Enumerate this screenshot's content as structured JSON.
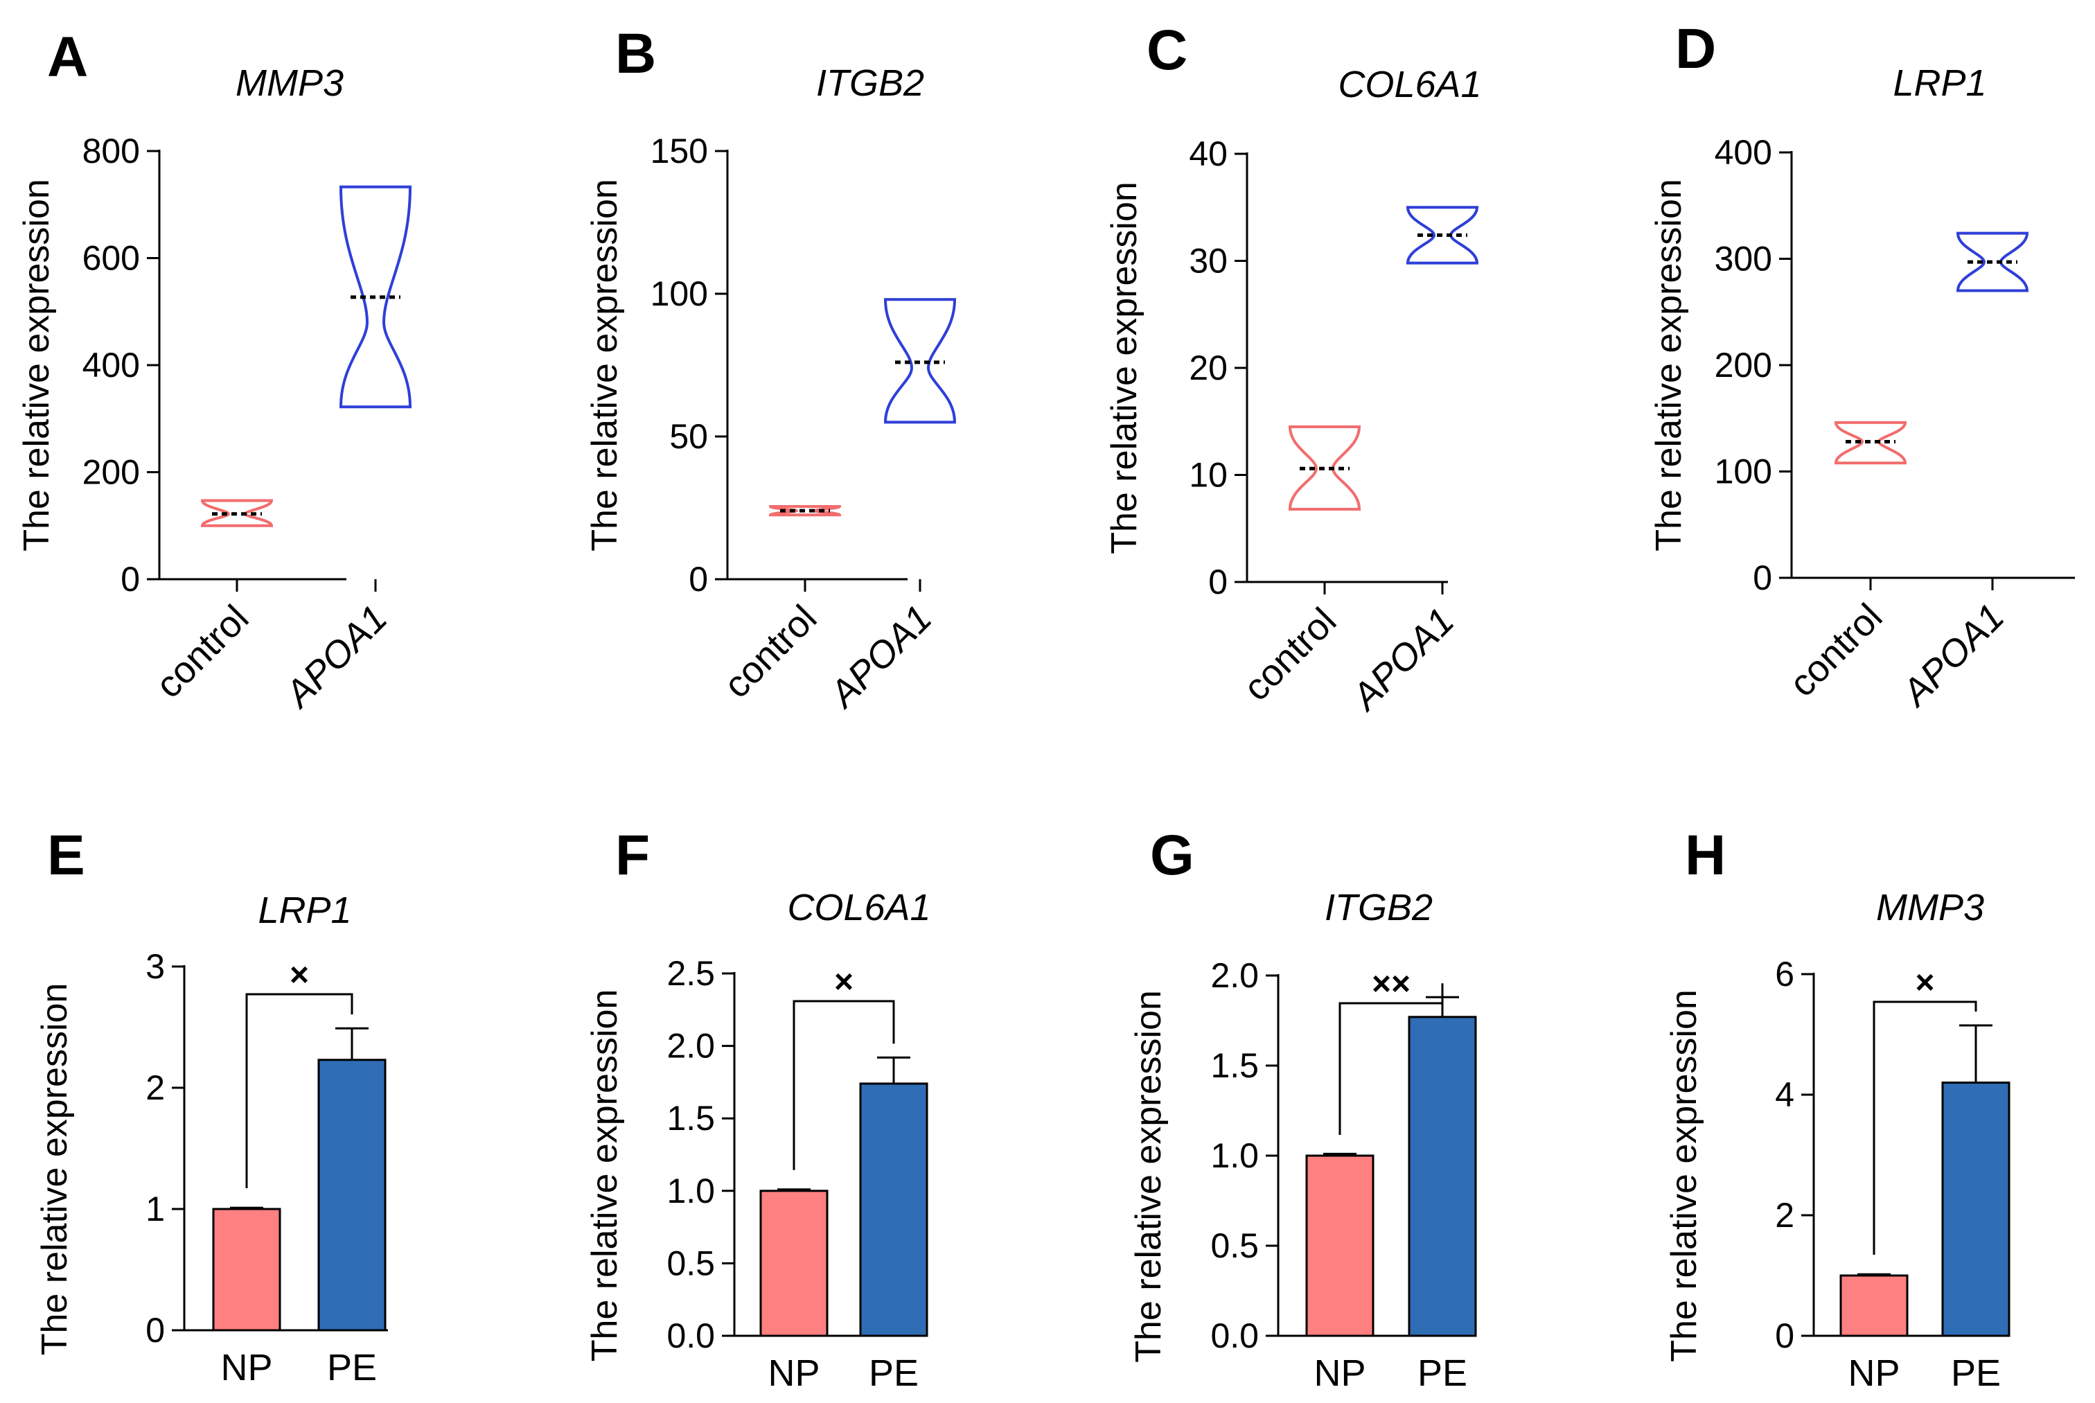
{
  "colors": {
    "control_outline": "#f26d6d",
    "control_fill": "#ffffff",
    "apoa1_outline": "#2f3fd8",
    "np_fill": "#ff8080",
    "pe_fill": "#2f6db5",
    "axis": "#000000"
  },
  "chart_data": [
    {
      "panel": "A",
      "type": "violin",
      "title": "MMP3",
      "ylabel": "The relative expression",
      "xlabel": "",
      "categories": [
        "control",
        "APOA1"
      ],
      "italic_categories": [
        false,
        true
      ],
      "ylim": [
        0,
        800
      ],
      "yticks": [
        0,
        200,
        400,
        600,
        800
      ],
      "series": [
        {
          "name": "control",
          "min": 100,
          "max": 147,
          "median": 122,
          "waist": 122
        },
        {
          "name": "APOA1",
          "min": 322,
          "max": 733,
          "median": 527,
          "waist": 480
        }
      ]
    },
    {
      "panel": "B",
      "type": "violin",
      "title": "ITGB2",
      "ylabel": "The relative expression",
      "xlabel": "",
      "categories": [
        "control",
        "APOA1"
      ],
      "italic_categories": [
        false,
        true
      ],
      "ylim": [
        0,
        150
      ],
      "yticks": [
        0,
        50,
        100,
        150
      ],
      "series": [
        {
          "name": "control",
          "min": 22.5,
          "max": 25.5,
          "median": 24,
          "waist": 24
        },
        {
          "name": "APOA1",
          "min": 55,
          "max": 98,
          "median": 76,
          "waist": 74
        }
      ]
    },
    {
      "panel": "C",
      "type": "violin",
      "title": "COL6A1",
      "ylabel": "The relative expression",
      "xlabel": "",
      "categories": [
        "control",
        "APOA1"
      ],
      "italic_categories": [
        false,
        true
      ],
      "ylim": [
        0,
        40
      ],
      "yticks": [
        0,
        10,
        20,
        30,
        40
      ],
      "series": [
        {
          "name": "control",
          "min": 6.8,
          "max": 14.5,
          "median": 10.6,
          "waist": 10.6
        },
        {
          "name": "APOA1",
          "min": 29.8,
          "max": 35,
          "median": 32.4,
          "waist": 32.4
        }
      ]
    },
    {
      "panel": "D",
      "type": "violin",
      "title": "LRP1",
      "ylabel": "The relative expression",
      "xlabel": "",
      "categories": [
        "control",
        "APOA1"
      ],
      "italic_categories": [
        false,
        true
      ],
      "ylim": [
        0,
        400
      ],
      "yticks": [
        0,
        100,
        200,
        300,
        400
      ],
      "series": [
        {
          "name": "control",
          "min": 108,
          "max": 146,
          "median": 128,
          "waist": 128
        },
        {
          "name": "APOA1",
          "min": 270,
          "max": 324,
          "median": 297,
          "waist": 297
        }
      ]
    },
    {
      "panel": "E",
      "type": "bar",
      "title": "LRP1",
      "ylabel": "The relative expression",
      "xlabel": "",
      "categories": [
        "NP",
        "PE"
      ],
      "ylim": [
        0,
        3
      ],
      "yticks": [
        "0",
        "1",
        "2",
        "3"
      ],
      "values": [
        1.0,
        2.23
      ],
      "errors": [
        0.01,
        0.26
      ],
      "significance": "×"
    },
    {
      "panel": "F",
      "type": "bar",
      "title": "COL6A1",
      "ylabel": "The relative expression",
      "xlabel": "",
      "categories": [
        "NP",
        "PE"
      ],
      "ylim": [
        0,
        2.5
      ],
      "yticks": [
        "0.0",
        "0.5",
        "1.0",
        "1.5",
        "2.0",
        "2.5"
      ],
      "values": [
        1.0,
        1.74
      ],
      "errors": [
        0.01,
        0.18
      ],
      "significance": "×"
    },
    {
      "panel": "G",
      "type": "bar",
      "title": "ITGB2",
      "ylabel": "The relative expression",
      "xlabel": "",
      "categories": [
        "NP",
        "PE"
      ],
      "ylim": [
        0,
        2.0
      ],
      "yticks": [
        "0.0",
        "0.5",
        "1.0",
        "1.5",
        "2.0"
      ],
      "values": [
        1.0,
        1.77
      ],
      "errors": [
        0.01,
        0.11
      ],
      "significance": "××"
    },
    {
      "panel": "H",
      "type": "bar",
      "title": "MMP3",
      "ylabel": "The relative expression",
      "xlabel": "",
      "categories": [
        "NP",
        "PE"
      ],
      "ylim": [
        0,
        6
      ],
      "yticks": [
        "0",
        "2",
        "4",
        "6"
      ],
      "values": [
        1.0,
        4.2
      ],
      "errors": [
        0.02,
        0.95
      ],
      "significance": "×"
    }
  ]
}
